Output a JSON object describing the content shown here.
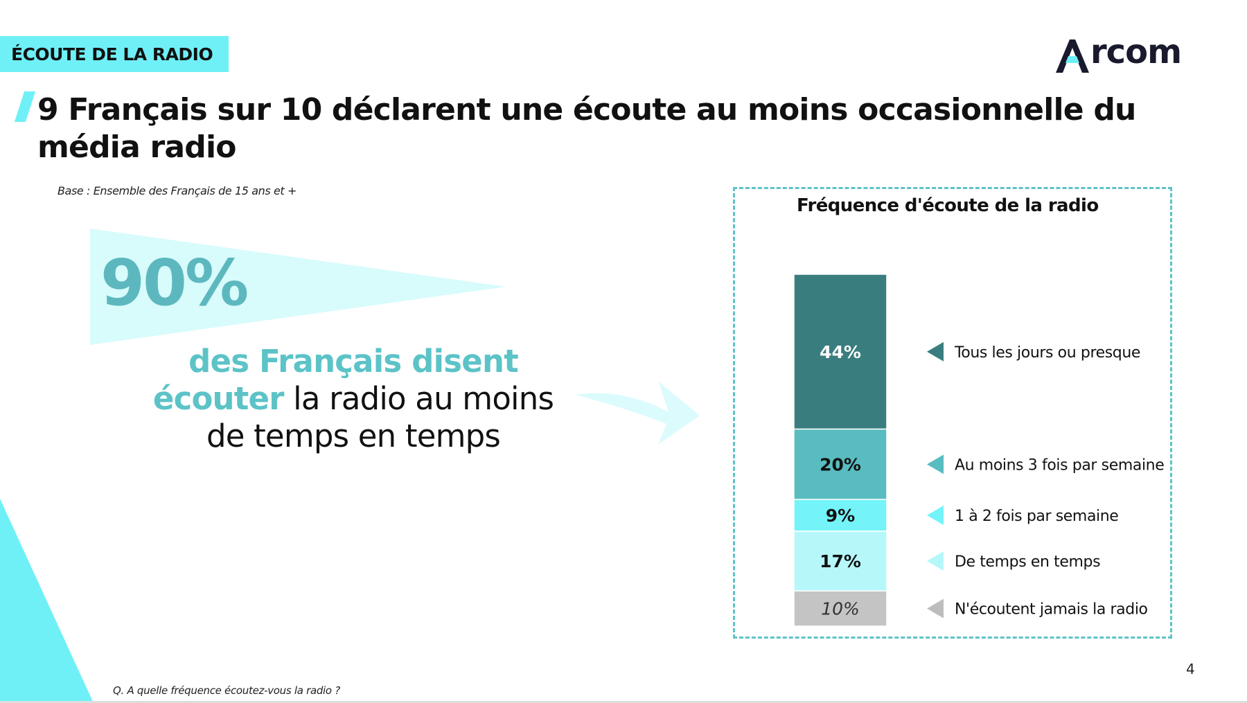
{
  "section_tag": "ÉCOUTE DE LA RADIO",
  "logo": {
    "text": "rcom",
    "icon": "arcom-a-logo-icon"
  },
  "headline": "9 Français sur 10 déclarent une écoute au moins occasionnelle du média radio",
  "base_note": "Base : Ensemble des Français de 15 ans et +",
  "big_stat": {
    "value": "90%",
    "highlight_text": "des Français disent",
    "highlight_word": "écouter",
    "text_line_2_rest": " la radio au moins",
    "text_line_3": "de temps en temps"
  },
  "question": "Q. A quelle fréquence écoutez-vous la radio ?",
  "page_number": "4",
  "colors": {
    "accent_cyan": "#6ff0f7",
    "teal_dark": "#3a7d7f",
    "teal_mid": "#58bcc0",
    "cyan_bright": "#74f3f8",
    "cyan_pale": "#b6f8fa",
    "grey": "#c4c4c4"
  },
  "chart_data": {
    "type": "bar",
    "stacked": true,
    "title": "Fréquence d'écoute de la radio",
    "categories": [
      "Tous les jours ou presque",
      "Au moins 3 fois par semaine",
      "1 à 2 fois par semaine",
      "De temps en temps",
      "N'écoutent jamais la radio"
    ],
    "values": [
      44,
      20,
      9,
      17,
      10
    ],
    "labels": [
      "44%",
      "20%",
      "9%",
      "17%",
      "10%"
    ],
    "series_colors": [
      "#3a7d7f",
      "#58bcc0",
      "#74f3f8",
      "#b6f8fa",
      "#c4c4c4"
    ],
    "label_colors": [
      "#ffffff",
      "#111111",
      "#111111",
      "#111111",
      "#333333"
    ],
    "legend_position": "right"
  }
}
